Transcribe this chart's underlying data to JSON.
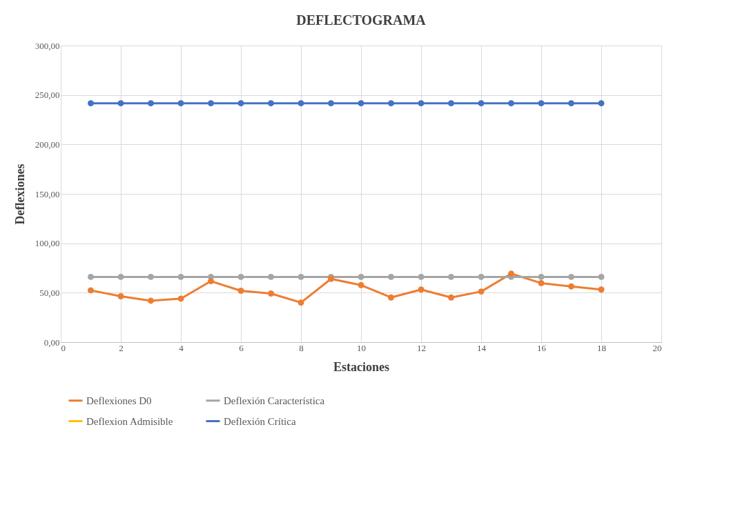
{
  "chart_data": {
    "type": "line",
    "title": "DEFLECTOGRAMA",
    "xlabel": "Estaciones",
    "ylabel": "Deflexiones",
    "x": [
      1,
      2,
      3,
      4,
      5,
      6,
      7,
      8,
      9,
      10,
      11,
      12,
      13,
      14,
      15,
      16,
      17,
      18
    ],
    "series": [
      {
        "name": "Deflexiones D0",
        "color": "#ed7d31",
        "values": [
          52.4,
          46.4,
          41.9,
          44,
          61.7,
          52,
          49.2,
          40,
          64,
          57.7,
          45.2,
          53.2,
          45.2,
          51.2,
          69.3,
          59.7,
          56.4,
          53.2
        ]
      },
      {
        "name": "Deflexión Característica",
        "color": "#a5a5a5",
        "values": [
          66,
          66,
          66,
          66,
          66,
          66,
          66,
          66,
          66,
          66,
          66,
          66,
          66,
          66,
          66,
          66,
          66,
          66
        ]
      },
      {
        "name": "Deflexion Admisible",
        "color": "#ffc000",
        "values": [
          null,
          null,
          null,
          null,
          null,
          null,
          null,
          null,
          null,
          null,
          null,
          null,
          null,
          null,
          null,
          null,
          null,
          null
        ]
      },
      {
        "name": "Deflexión Crítica",
        "color": "#4472c4",
        "values": [
          241.6,
          241.6,
          241.6,
          241.6,
          241.6,
          241.6,
          241.6,
          241.6,
          241.6,
          241.6,
          241.6,
          241.6,
          241.6,
          241.6,
          241.6,
          241.6,
          241.6,
          241.6
        ]
      }
    ],
    "xlim": [
      0,
      20
    ],
    "xticks": [
      0,
      2,
      4,
      6,
      8,
      10,
      12,
      14,
      16,
      18,
      20
    ],
    "ylim": [
      0,
      300
    ],
    "yticks": [
      {
        "value": 0,
        "label": "0,00"
      },
      {
        "value": 50,
        "label": "50,00"
      },
      {
        "value": 100,
        "label": "100,00"
      },
      {
        "value": 150,
        "label": "150,00"
      },
      {
        "value": 200,
        "label": "200,00"
      },
      {
        "value": 250,
        "label": "250,00"
      },
      {
        "value": 300,
        "label": "300,00"
      }
    ],
    "grid": true,
    "legend": "bottom",
    "marker": "circle",
    "line_style": "solid"
  }
}
